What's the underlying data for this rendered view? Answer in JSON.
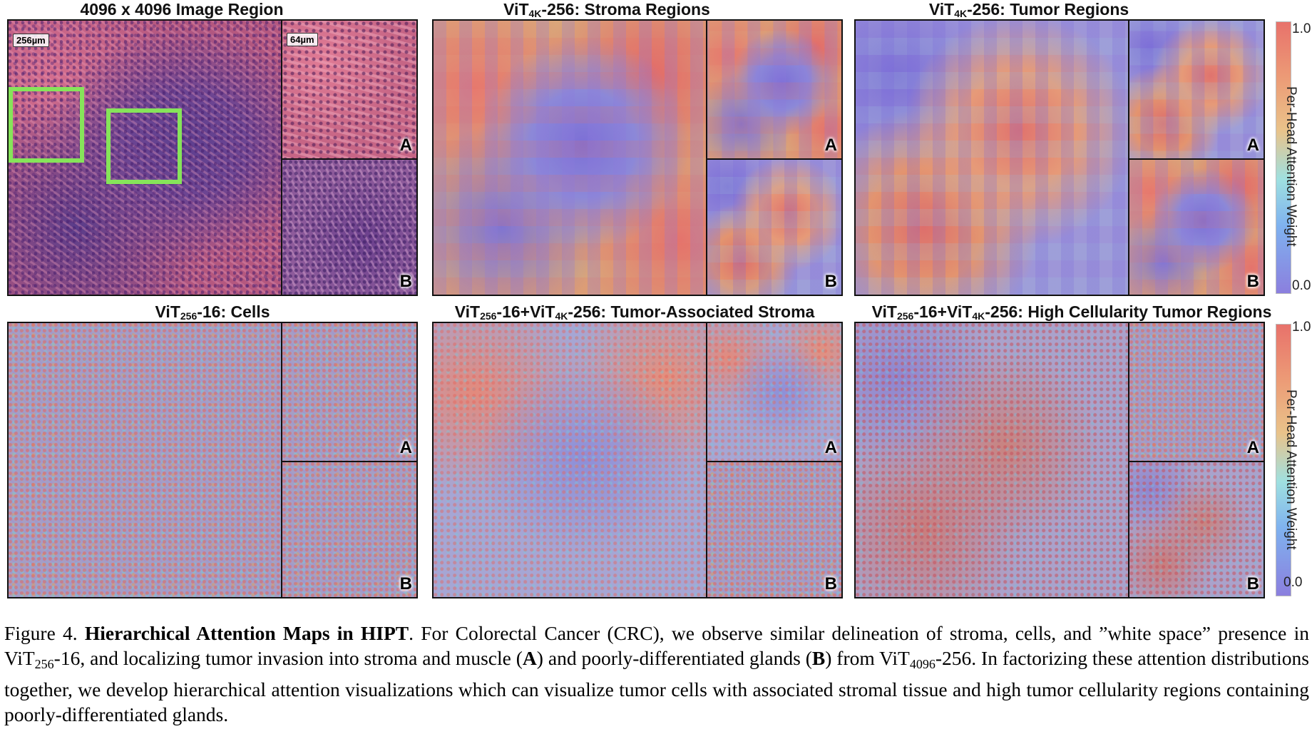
{
  "figure": {
    "panels": [
      {
        "id": "original",
        "title": "4096 x 4096 Image Region",
        "scale_main": "256µm",
        "scale_inset": "64µm",
        "inset_a": "A",
        "inset_b": "B"
      },
      {
        "id": "stroma",
        "title_pre": "ViT",
        "title_sub": "4K",
        "title_post": "-256: Stroma Regions",
        "inset_a": "A",
        "inset_b": "B"
      },
      {
        "id": "tumor",
        "title_pre": "ViT",
        "title_sub": "4K",
        "title_post": "-256: Tumor Regions",
        "inset_a": "A",
        "inset_b": "B"
      },
      {
        "id": "cells",
        "title_pre": "ViT",
        "title_sub": "256",
        "title_post": "-16: Cells",
        "inset_a": "A",
        "inset_b": "B"
      },
      {
        "id": "tas",
        "title_pre": "ViT",
        "title_sub": "256",
        "title_mid": "-16+ViT",
        "title_sub2": "4K",
        "title_post": "-256: Tumor-Associated Stroma",
        "inset_a": "A",
        "inset_b": "B"
      },
      {
        "id": "hct",
        "title_pre": "ViT",
        "title_sub": "256",
        "title_mid": "-16+ViT",
        "title_sub2": "4K",
        "title_post": "-256: High Cellularity Tumor Regions",
        "inset_a": "A",
        "inset_b": "B"
      }
    ],
    "colorbars": [
      {
        "top_tick": "1.0",
        "bottom_tick": "0.0",
        "label": "Per-Head Attention Weight"
      },
      {
        "top_tick": "1.0",
        "bottom_tick": "0.0",
        "label": "Per-Head Attention Weight"
      }
    ],
    "colors": {
      "highlight_box": "#86e45a",
      "border": "#111111"
    }
  },
  "caption": {
    "label": "Figure 4.",
    "title": "Hierarchical Attention Maps in HIPT",
    "t1": ". For Colorectal Cancer (CRC), we observe similar delineation of stroma, cells, and ”white space” presence in ViT",
    "s1": "256",
    "t2": "-16, and localizing tumor invasion into stroma and muscle (",
    "bA": "A",
    "t3": ") and poorly-differentiated glands (",
    "bB": "B",
    "t4": ") from ViT",
    "s2": "4096",
    "t5": "-256. In factorizing these attention distributions together, we develop hierarchical attention visualizations which can visualize tumor cells with associated stromal tissue and high tumor cellularity regions containing poorly-differentiated glands."
  }
}
